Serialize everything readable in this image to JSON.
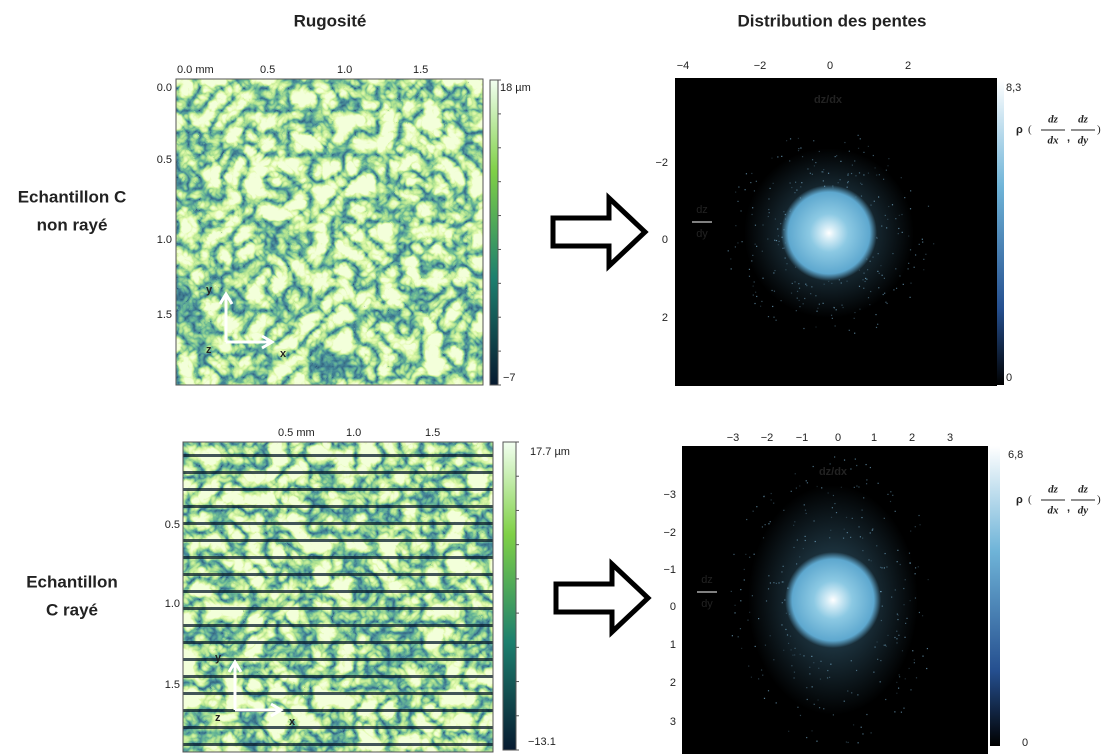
{
  "headers": {
    "left": "Rugosité",
    "right": "Distribution des pentes"
  },
  "rows": [
    {
      "label": [
        "Echantillon C",
        "non rayé"
      ],
      "roughness": {
        "x_ticks": [
          "0.0 mm",
          "0.5",
          "1.0",
          "1.5"
        ],
        "y_ticks": [
          "0.0",
          "0.5",
          "1.0",
          "1.5"
        ],
        "colorbar": {
          "max": "18 µm",
          "min": "−7"
        },
        "axes": {
          "y": "y",
          "z": "z",
          "x": "x"
        }
      },
      "slopes": {
        "x_ticks": [
          "−4",
          "−2",
          "0",
          "2"
        ],
        "y_ticks": [
          "−2",
          "0",
          "2"
        ],
        "x_label": "dz/dx",
        "y_label": {
          "num": "dz",
          "den": "dy"
        },
        "colorbar": {
          "max": "8,3",
          "min": "0"
        },
        "density_label": {
          "symbol": "ρ",
          "open": "(",
          "num1": "dz",
          "den1": "dx",
          "sep": ",",
          "num2": "dz",
          "den2": "dy",
          "close": ")"
        }
      }
    },
    {
      "label": [
        "Echantillon",
        "C rayé"
      ],
      "roughness": {
        "x_ticks": [
          "0.5 mm",
          "1.0",
          "1.5"
        ],
        "y_ticks": [
          "0.5",
          "1.0",
          "1.5"
        ],
        "colorbar": {
          "max": "17.7 µm",
          "min": "−13.1"
        },
        "axes": {
          "y": "y",
          "z": "z",
          "x": "x"
        }
      },
      "slopes": {
        "x_ticks": [
          "−3",
          "−2",
          "−1",
          "0",
          "1",
          "2",
          "3"
        ],
        "y_ticks": [
          "−3",
          "−2",
          "−1",
          "0",
          "1",
          "2",
          "3"
        ],
        "x_label": "dz/dx",
        "y_label": {
          "num": "dz",
          "den": "dy"
        },
        "colorbar": {
          "max": "6,8",
          "min": "0"
        },
        "density_label": {
          "symbol": "ρ",
          "open": "(",
          "num1": "dz",
          "den1": "dx",
          "sep": ",",
          "num2": "dz",
          "den2": "dy",
          "close": ")"
        }
      }
    }
  ]
}
